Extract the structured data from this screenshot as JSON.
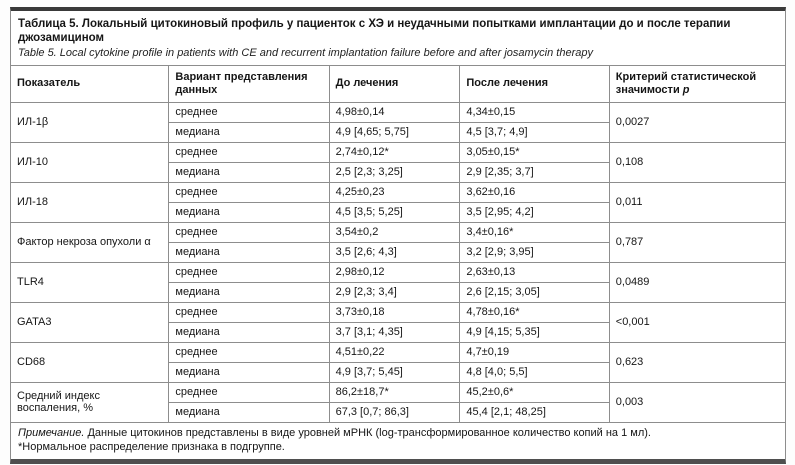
{
  "table": {
    "title_ru": "Таблица 5. Локальный цитокиновый профиль у пациенток с ХЭ и неудачными попытками имплантации до и после терапии джозамицином",
    "title_en": "Table 5. Local cytokine profile in patients with CE and recurrent implantation failure before and after josamycin therapy",
    "header": {
      "indicator": "Показатель",
      "variant": "Вариант представления данных",
      "before": "До лечения",
      "after": "После лечения",
      "p_prefix": "Критерий статистической значимости ",
      "p_symbol": "p"
    },
    "labels": {
      "mean": "среднее",
      "median": "медиана"
    },
    "rows": [
      {
        "indicator": "ИЛ-1β",
        "mean_before": "4,98±0,14",
        "mean_after": "4,34±0,15",
        "median_before": "4,9 [4,65; 5,75]",
        "median_after": "4,5 [3,7; 4,9]",
        "p": "0,0027"
      },
      {
        "indicator": "ИЛ-10",
        "mean_before": "2,74±0,12*",
        "mean_after": "3,05±0,15*",
        "median_before": "2,5 [2,3; 3,25]",
        "median_after": "2,9 [2,35; 3,7]",
        "p": "0,108"
      },
      {
        "indicator": "ИЛ-18",
        "mean_before": "4,25±0,23",
        "mean_after": "3,62±0,16",
        "median_before": "4,5 [3,5; 5,25]",
        "median_after": "3,5 [2,95; 4,2]",
        "p": "0,011"
      },
      {
        "indicator": "Фактор некроза опухоли α",
        "mean_before": "3,54±0,2",
        "mean_after": "3,4±0,16*",
        "median_before": "3,5 [2,6; 4,3]",
        "median_after": "3,2 [2,9; 3,95]",
        "p": "0,787"
      },
      {
        "indicator": "TLR4",
        "mean_before": "2,98±0,12",
        "mean_after": "2,63±0,13",
        "median_before": "2,9 [2,3; 3,4]",
        "median_after": "2,6 [2,15; 3,05]",
        "p": "0,0489"
      },
      {
        "indicator": "GATA3",
        "mean_before": "3,73±0,18",
        "mean_after": "4,78±0,16*",
        "median_before": "3,7 [3,1; 4,35]",
        "median_after": "4,9 [4,15; 5,35]",
        "p": "<0,001"
      },
      {
        "indicator": "CD68",
        "mean_before": "4,51±0,22",
        "mean_after": "4,7±0,19",
        "median_before": "4,9 [3,7; 5,45]",
        "median_after": "4,8 [4,0; 5,5]",
        "p": "0,623"
      },
      {
        "indicator": "Средний индекс воспаления, %",
        "mean_before": "86,2±18,7*",
        "mean_after": "45,2±0,6*",
        "median_before": "67,3 [0,7; 86,3]",
        "median_after": "45,4 [2,1; 48,25]",
        "p": "0,003"
      }
    ],
    "note": {
      "label": "Примечание.",
      "text": " Данные цитокинов представлены в виде уровней мРНК (log-трансформированное количество копий на 1 мл).",
      "line2": "*Нормальное распределение признака в подгруппе."
    },
    "colors": {
      "border": "#8d8d8d",
      "top_bar": "#3a3a3a",
      "bottom_bar": "#4f4f4f",
      "text": "#161616",
      "background": "#ffffff"
    }
  }
}
